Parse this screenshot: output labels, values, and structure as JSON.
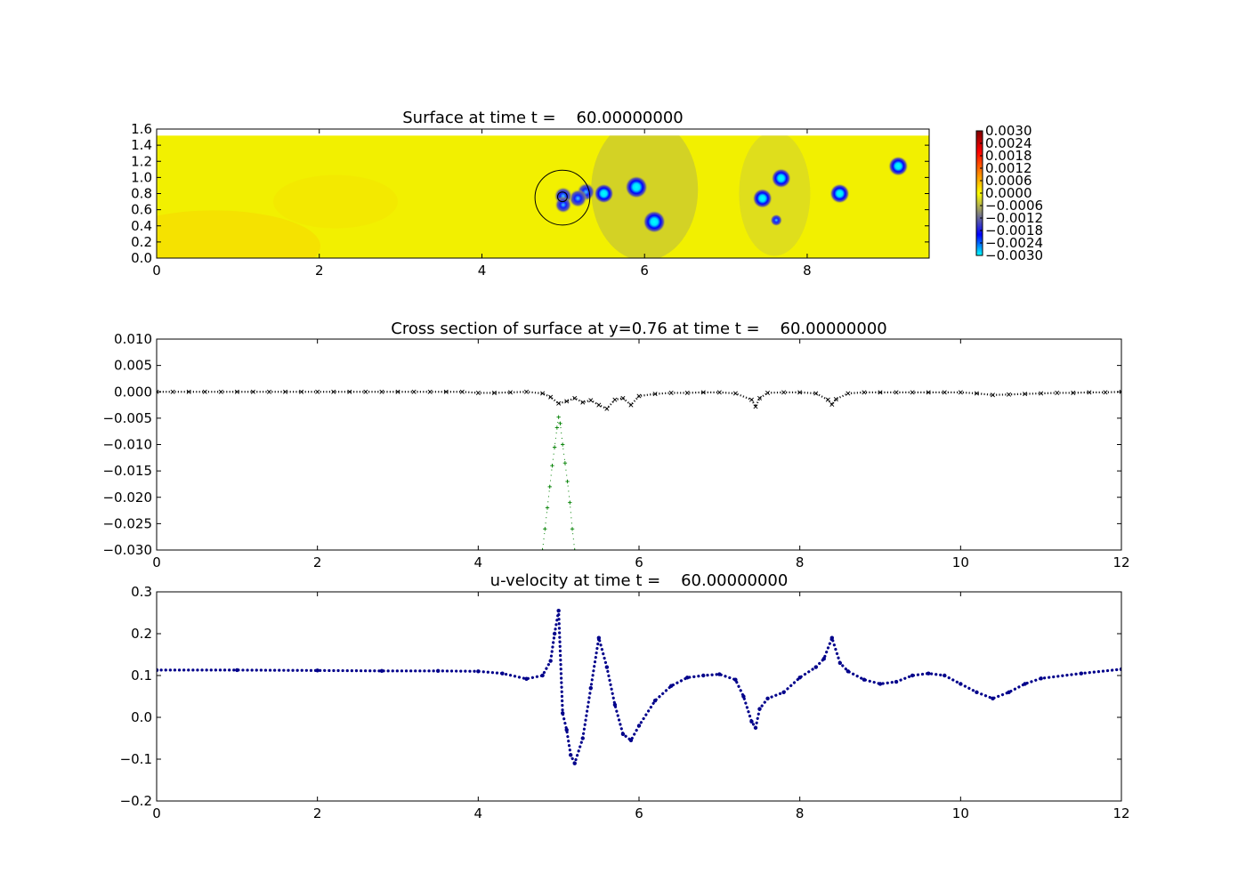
{
  "chart_data": [
    {
      "type": "heatmap",
      "title": "Surface at time t =    60.00000000",
      "xlim": [
        0,
        9.5
      ],
      "ylim": [
        0,
        1.6
      ],
      "domain": {
        "x": [
          0,
          9.5
        ],
        "y": [
          0,
          1.52
        ]
      },
      "x_ticks": [
        "0",
        "2",
        "4",
        "6",
        "8"
      ],
      "x_tick_values": [
        0,
        2,
        4,
        6,
        8
      ],
      "y_ticks": [
        "0.0",
        "0.2",
        "0.4",
        "0.6",
        "0.8",
        "1.0",
        "1.2",
        "1.4",
        "1.6"
      ],
      "y_tick_values": [
        0,
        0.2,
        0.4,
        0.6,
        0.8,
        1.0,
        1.2,
        1.4,
        1.6
      ],
      "colorbar": {
        "ticks": [
          "0.0030",
          "0.0024",
          "0.0018",
          "0.0012",
          "0.0006",
          "0.0000",
          "−0.0006",
          "−0.0012",
          "−0.0018",
          "−0.0024",
          "−0.0030"
        ],
        "colors": [
          "#7f0000",
          "#ff0000",
          "#ff8000",
          "#ffff00",
          "#808080",
          "#0000ff",
          "#00ffff"
        ]
      },
      "background_value": 0.0,
      "features": [
        {
          "x": 5.9,
          "y": 0.88,
          "value": -0.003
        },
        {
          "x": 6.12,
          "y": 0.45,
          "value": -0.003
        },
        {
          "x": 5.5,
          "y": 0.8,
          "value": -0.0026
        },
        {
          "x": 5.28,
          "y": 0.82,
          "value": -0.0024
        },
        {
          "x": 5.18,
          "y": 0.74,
          "value": -0.0024
        },
        {
          "x": 5.0,
          "y": 0.77,
          "value": -0.0024
        },
        {
          "x": 5.0,
          "y": 0.66,
          "value": -0.0022
        },
        {
          "x": 7.68,
          "y": 0.99,
          "value": -0.0026
        },
        {
          "x": 7.45,
          "y": 0.74,
          "value": -0.0026
        },
        {
          "x": 7.62,
          "y": 0.47,
          "value": -0.0016
        },
        {
          "x": 8.4,
          "y": 0.8,
          "value": -0.0026
        },
        {
          "x": 9.12,
          "y": 1.14,
          "value": -0.0026
        }
      ],
      "circles": [
        {
          "cx": 4.99,
          "cy": 0.75,
          "r": 0.34
        },
        {
          "cx": 4.99,
          "cy": 0.76,
          "r": 0.06
        }
      ]
    },
    {
      "type": "scatter",
      "title": "Cross section of surface at y=0.76 at time t =    60.00000000",
      "xlim": [
        0,
        12
      ],
      "ylim": [
        -0.03,
        0.01
      ],
      "x_ticks": [
        "0",
        "2",
        "4",
        "6",
        "8",
        "10",
        "12"
      ],
      "x_tick_values": [
        0,
        2,
        4,
        6,
        8,
        10,
        12
      ],
      "y_ticks": [
        "0.010",
        "0.005",
        "0.000",
        "−0.005",
        "−0.010",
        "−0.015",
        "−0.020",
        "−0.025",
        "−0.030"
      ],
      "y_tick_values": [
        0.01,
        0.005,
        0,
        -0.005,
        -0.01,
        -0.015,
        -0.02,
        -0.025,
        -0.03
      ],
      "series": [
        {
          "marker": "x",
          "color": "#000000",
          "x": [
            0.0,
            0.2,
            0.4,
            0.6,
            0.8,
            1.0,
            1.2,
            1.4,
            1.6,
            1.8,
            2.0,
            2.2,
            2.4,
            2.6,
            2.8,
            3.0,
            3.2,
            3.4,
            3.6,
            3.8,
            4.0,
            4.2,
            4.4,
            4.6,
            4.8,
            4.9,
            5.0,
            5.1,
            5.2,
            5.3,
            5.4,
            5.5,
            5.6,
            5.7,
            5.8,
            5.9,
            6.0,
            6.2,
            6.4,
            6.6,
            6.8,
            7.0,
            7.2,
            7.4,
            7.45,
            7.5,
            7.6,
            7.8,
            8.0,
            8.2,
            8.35,
            8.4,
            8.45,
            8.6,
            8.8,
            9.0,
            9.2,
            9.4,
            9.6,
            9.8,
            10.0,
            10.2,
            10.4,
            10.6,
            10.8,
            11.0,
            11.2,
            11.4,
            11.6,
            11.8,
            12.0
          ],
          "y": [
            0.0,
            0.0,
            0.0,
            0.0,
            0.0,
            0.0,
            0.0,
            0.0,
            0.0,
            0.0,
            0.0,
            0.0,
            0.0,
            0.0,
            0.0,
            0.0,
            0.0,
            0.0,
            0.0,
            0.0,
            -0.0002,
            -0.0002,
            -0.0001,
            0.0,
            -0.0003,
            -0.001,
            -0.0022,
            -0.0018,
            -0.0012,
            -0.002,
            -0.0016,
            -0.0025,
            -0.0032,
            -0.0015,
            -0.0012,
            -0.0025,
            -0.0008,
            -0.0004,
            -0.0002,
            -0.0002,
            -0.0001,
            -0.0001,
            -0.0003,
            -0.0015,
            -0.0028,
            -0.0012,
            -0.0002,
            -0.0001,
            -0.0001,
            -0.0003,
            -0.0015,
            -0.0024,
            -0.0014,
            -0.0003,
            -0.0001,
            -0.0001,
            -0.0001,
            -0.0001,
            -0.0001,
            -0.0001,
            -0.0001,
            -0.0003,
            -0.0006,
            -0.0005,
            -0.0004,
            -0.0003,
            -0.0002,
            -0.0002,
            -0.0001,
            -0.0001,
            0.0
          ]
        },
        {
          "marker": "+",
          "color": "#008000",
          "x": [
            4.8,
            4.83,
            4.86,
            4.89,
            4.92,
            4.95,
            4.98,
            5.0,
            5.02,
            5.05,
            5.08,
            5.11,
            5.14,
            5.17,
            5.2
          ],
          "y": [
            -0.03,
            -0.026,
            -0.022,
            -0.018,
            -0.014,
            -0.0105,
            -0.0068,
            -0.0048,
            -0.006,
            -0.01,
            -0.0135,
            -0.017,
            -0.021,
            -0.026,
            -0.03
          ]
        }
      ]
    },
    {
      "type": "scatter",
      "title": "u-velocity at time t =    60.00000000",
      "xlim": [
        0,
        12
      ],
      "ylim": [
        -0.2,
        0.3
      ],
      "x_ticks": [
        "0",
        "2",
        "4",
        "6",
        "8",
        "10",
        "12"
      ],
      "x_tick_values": [
        0,
        2,
        4,
        6,
        8,
        10,
        12
      ],
      "y_ticks": [
        "0.3",
        "0.2",
        "0.1",
        "0.0",
        "−0.1",
        "−0.2"
      ],
      "y_tick_values": [
        0.3,
        0.2,
        0.1,
        0.0,
        -0.1,
        -0.2
      ],
      "series": [
        {
          "marker": "dot",
          "color": "#00008b",
          "x": [
            0.0,
            1.0,
            2.0,
            2.8,
            3.5,
            4.0,
            4.3,
            4.6,
            4.8,
            4.9,
            4.95,
            5.0,
            5.05,
            5.1,
            5.15,
            5.2,
            5.3,
            5.4,
            5.5,
            5.6,
            5.7,
            5.8,
            5.9,
            6.0,
            6.2,
            6.4,
            6.6,
            6.8,
            7.0,
            7.2,
            7.3,
            7.4,
            7.45,
            7.5,
            7.6,
            7.8,
            8.0,
            8.2,
            8.3,
            8.4,
            8.5,
            8.6,
            8.8,
            9.0,
            9.2,
            9.4,
            9.6,
            9.8,
            10.0,
            10.2,
            10.4,
            10.6,
            10.8,
            11.0,
            11.5,
            12.0
          ],
          "y": [
            0.113,
            0.113,
            0.112,
            0.111,
            0.111,
            0.11,
            0.105,
            0.092,
            0.1,
            0.135,
            0.2,
            0.255,
            0.01,
            -0.03,
            -0.09,
            -0.11,
            -0.05,
            0.07,
            0.19,
            0.12,
            0.03,
            -0.04,
            -0.055,
            -0.02,
            0.04,
            0.075,
            0.095,
            0.1,
            0.103,
            0.09,
            0.05,
            -0.01,
            -0.025,
            0.02,
            0.045,
            0.06,
            0.095,
            0.12,
            0.14,
            0.19,
            0.13,
            0.11,
            0.09,
            0.08,
            0.085,
            0.1,
            0.105,
            0.1,
            0.08,
            0.06,
            0.045,
            0.06,
            0.08,
            0.093,
            0.105,
            0.115
          ]
        }
      ]
    }
  ]
}
